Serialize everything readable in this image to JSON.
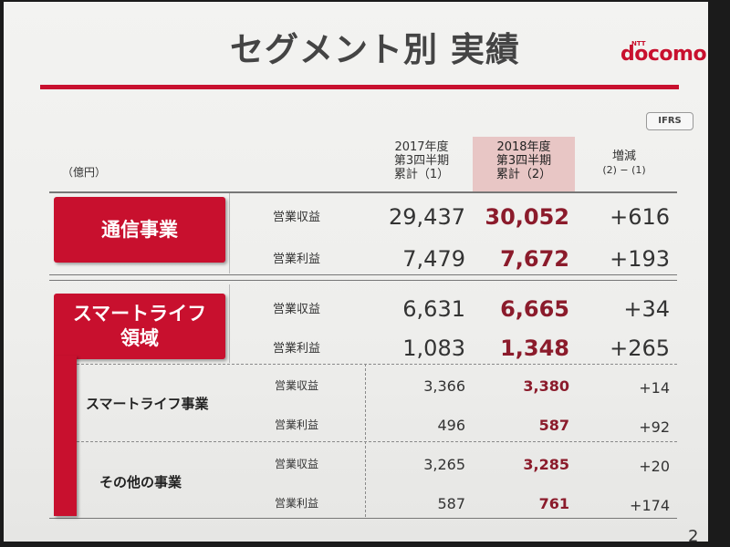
{
  "slide": {
    "title": "セグメント別 実績",
    "brand": "docomo",
    "brand_small": "NTT",
    "accounting_badge": "IFRS",
    "unit": "（億円）",
    "page_number": "2",
    "accent_color": "#c8102e"
  },
  "columns": {
    "prev": {
      "line1": "2017年度",
      "line2": "第3四半期",
      "line3": "累計（1）"
    },
    "curr": {
      "line1": "2018年度",
      "line2": "第3四半期",
      "line3": "累計（2）"
    },
    "diff": {
      "line1": "増減",
      "line2": "(2) − (1)"
    }
  },
  "segments": {
    "telecom": {
      "label": "通信事業",
      "revenue": {
        "metric": "営業収益",
        "prev": "29,437",
        "curr": "30,052",
        "diff": "+616"
      },
      "profit": {
        "metric": "営業利益",
        "prev": "7,479",
        "curr": "7,672",
        "diff": "+193"
      }
    },
    "smartlife": {
      "label_line1": "スマートライフ",
      "label_line2": "領域",
      "revenue": {
        "metric": "営業収益",
        "prev": "6,631",
        "curr": "6,665",
        "diff": "+34"
      },
      "profit": {
        "metric": "営業利益",
        "prev": "1,083",
        "curr": "1,348",
        "diff": "+265"
      },
      "sub1": {
        "label": "スマートライフ事業",
        "revenue": {
          "metric": "営業収益",
          "prev": "3,366",
          "curr": "3,380",
          "diff": "+14"
        },
        "profit": {
          "metric": "営業利益",
          "prev": "496",
          "curr": "587",
          "diff": "+92"
        }
      },
      "sub2": {
        "label": "その他の事業",
        "revenue": {
          "metric": "営業収益",
          "prev": "3,265",
          "curr": "3,285",
          "diff": "+20"
        },
        "profit": {
          "metric": "営業利益",
          "prev": "587",
          "curr": "761",
          "diff": "+174"
        }
      }
    }
  }
}
